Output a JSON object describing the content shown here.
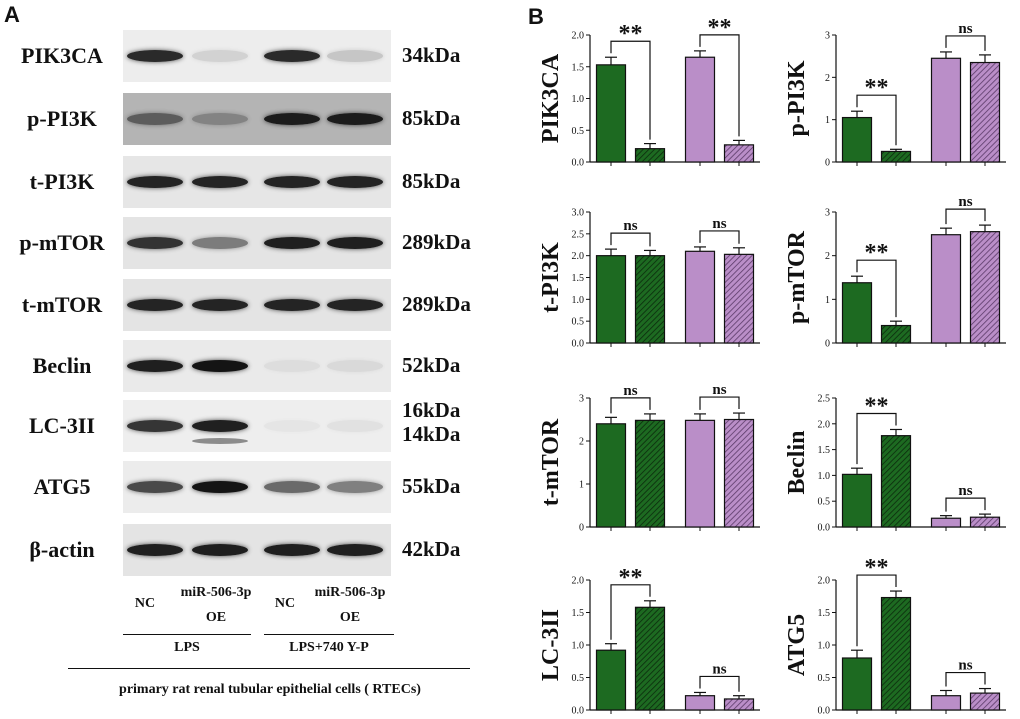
{
  "panels": {
    "a": "A",
    "b": "B"
  },
  "blots": [
    {
      "protein": "PIK3CA",
      "kda": "34kDa",
      "bg": "#ededed",
      "bands": [
        0.9,
        0.12,
        0.9,
        0.18
      ]
    },
    {
      "protein": "p-PI3K",
      "kda": "85kDa",
      "bg": "#b4b4b4",
      "bands": [
        0.55,
        0.3,
        0.95,
        0.95
      ]
    },
    {
      "protein": "t-PI3K",
      "kda": "85kDa",
      "bg": "#e6e6e6",
      "bands": [
        0.92,
        0.92,
        0.92,
        0.92
      ]
    },
    {
      "protein": "p-mTOR",
      "kda": "289kDa",
      "bg": "#e4e4e4",
      "bands": [
        0.85,
        0.5,
        0.95,
        0.95
      ]
    },
    {
      "protein": "t-mTOR",
      "kda": "289kDa",
      "bg": "#e4e4e4",
      "bands": [
        0.92,
        0.92,
        0.92,
        0.92
      ]
    },
    {
      "protein": "Beclin",
      "kda": "52kDa",
      "bg": "#eaeaea",
      "bands": [
        0.95,
        1.0,
        0.06,
        0.08
      ]
    },
    {
      "protein": "LC-3II",
      "kda": "16kDa\n14kDa",
      "bg": "#eeeeee",
      "bands": [
        0.85,
        0.95,
        0.04,
        0.06
      ]
    },
    {
      "protein": "ATG5",
      "kda": "55kDa",
      "bg": "#ececec",
      "bands": [
        0.75,
        1.0,
        0.6,
        0.5
      ]
    },
    {
      "protein": "β-actin",
      "kda": "42kDa",
      "bg": "#e4e4e4",
      "bands": [
        0.95,
        0.95,
        0.95,
        0.95
      ]
    }
  ],
  "lanes": {
    "nc_1": "NC",
    "oe_1_top": "miR-506-3p",
    "oe_1_bottom": "OE",
    "nc_2": "NC",
    "oe_2_top": "miR-506-3p",
    "oe_2_bottom": "OE"
  },
  "groups": {
    "lps": "LPS",
    "lps740": "LPS+740 Y-P"
  },
  "cells": "primary rat renal tubular epithelial cells ( RTECs)",
  "colors": {
    "green": "#1d6a21",
    "purple": "#ba8ec8",
    "band": "#1a1a1a"
  },
  "chart_data": [
    {
      "type": "bar",
      "ylabel": "PIK3CA",
      "ylim": [
        0,
        2.0
      ],
      "ticks": [
        "0.0",
        "0.5",
        "1.0",
        "1.5",
        "2.0"
      ],
      "values": [
        1.53,
        0.21,
        1.65,
        0.27
      ],
      "errors": [
        0.12,
        0.08,
        0.1,
        0.07
      ],
      "sig": [
        {
          "from": 0,
          "to": 1,
          "label": "**"
        },
        {
          "from": 2,
          "to": 3,
          "label": "**"
        }
      ]
    },
    {
      "type": "bar",
      "ylabel": "p-PI3K",
      "ylim": [
        0,
        3
      ],
      "ticks": [
        "0",
        "1",
        "2",
        "3"
      ],
      "values": [
        1.05,
        0.25,
        2.45,
        2.35
      ],
      "errors": [
        0.15,
        0.05,
        0.15,
        0.18
      ],
      "sig": [
        {
          "from": 0,
          "to": 1,
          "label": "**"
        },
        {
          "from": 2,
          "to": 3,
          "label": "ns"
        }
      ]
    },
    {
      "type": "bar",
      "ylabel": "t-PI3K",
      "ylim": [
        0,
        3.0
      ],
      "ticks": [
        "0.0",
        "0.5",
        "1.0",
        "1.5",
        "2.0",
        "2.5",
        "3.0"
      ],
      "values": [
        2.0,
        2.0,
        2.1,
        2.03
      ],
      "errors": [
        0.15,
        0.12,
        0.1,
        0.15
      ],
      "sig": [
        {
          "from": 0,
          "to": 1,
          "label": "ns"
        },
        {
          "from": 2,
          "to": 3,
          "label": "ns"
        }
      ]
    },
    {
      "type": "bar",
      "ylabel": "p-mTOR",
      "ylim": [
        0,
        3
      ],
      "ticks": [
        "0",
        "1",
        "2",
        "3"
      ],
      "values": [
        1.38,
        0.4,
        2.48,
        2.55
      ],
      "errors": [
        0.15,
        0.1,
        0.15,
        0.15
      ],
      "sig": [
        {
          "from": 0,
          "to": 1,
          "label": "**"
        },
        {
          "from": 2,
          "to": 3,
          "label": "ns"
        }
      ]
    },
    {
      "type": "bar",
      "ylabel": "t-mTOR",
      "ylim": [
        0,
        3
      ],
      "ticks": [
        "0",
        "1",
        "2",
        "3"
      ],
      "values": [
        2.4,
        2.48,
        2.48,
        2.5
      ],
      "errors": [
        0.15,
        0.15,
        0.15,
        0.15
      ],
      "sig": [
        {
          "from": 0,
          "to": 1,
          "label": "ns"
        },
        {
          "from": 2,
          "to": 3,
          "label": "ns"
        }
      ]
    },
    {
      "type": "bar",
      "ylabel": "Beclin",
      "ylim": [
        0,
        2.5
      ],
      "ticks": [
        "0.0",
        "0.5",
        "1.0",
        "1.5",
        "2.0",
        "2.5"
      ],
      "values": [
        1.02,
        1.77,
        0.17,
        0.19
      ],
      "errors": [
        0.12,
        0.12,
        0.05,
        0.06
      ],
      "sig": [
        {
          "from": 0,
          "to": 1,
          "label": "**"
        },
        {
          "from": 2,
          "to": 3,
          "label": "ns"
        }
      ]
    },
    {
      "type": "bar",
      "ylabel": "LC-3II",
      "ylim": [
        0,
        2.0
      ],
      "ticks": [
        "0.0",
        "0.5",
        "1.0",
        "1.5",
        "2.0"
      ],
      "values": [
        0.92,
        1.58,
        0.22,
        0.17
      ],
      "errors": [
        0.1,
        0.1,
        0.05,
        0.05
      ],
      "sig": [
        {
          "from": 0,
          "to": 1,
          "label": "**"
        },
        {
          "from": 2,
          "to": 3,
          "label": "ns"
        }
      ]
    },
    {
      "type": "bar",
      "ylabel": "ATG5",
      "ylim": [
        0,
        2.0
      ],
      "ticks": [
        "0.0",
        "0.5",
        "1.0",
        "1.5",
        "2.0"
      ],
      "values": [
        0.8,
        1.73,
        0.22,
        0.26
      ],
      "errors": [
        0.12,
        0.1,
        0.08,
        0.07
      ],
      "sig": [
        {
          "from": 0,
          "to": 1,
          "label": "**"
        },
        {
          "from": 2,
          "to": 3,
          "label": "ns"
        }
      ]
    }
  ]
}
